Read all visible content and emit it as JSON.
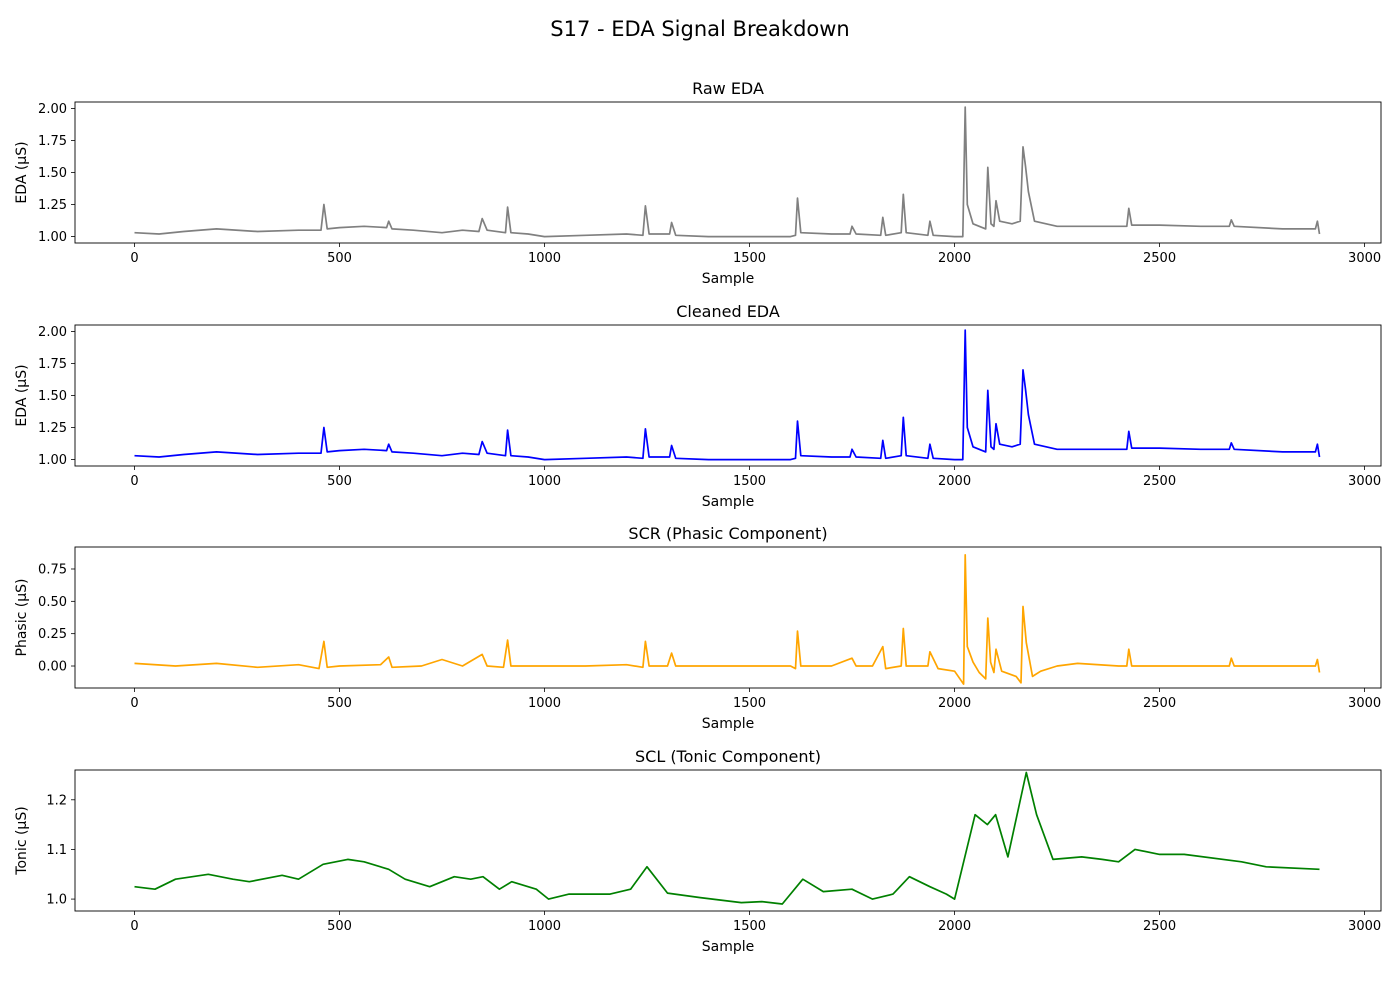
{
  "figure": {
    "title": "S17 - EDA Signal Breakdown"
  },
  "chart_data": [
    {
      "type": "line",
      "title": "Raw EDA",
      "xlabel": "Sample",
      "ylabel": "EDA (μS)",
      "color": "#808080",
      "xlim": [
        -145,
        3040
      ],
      "ylim": [
        0.95,
        2.05
      ],
      "xticks": [
        0,
        500,
        1000,
        1500,
        2000,
        2500,
        3000
      ],
      "yticks": [
        1.0,
        1.25,
        1.5,
        1.75,
        2.0
      ],
      "ytick_labels": [
        "1.00",
        "1.25",
        "1.50",
        "1.75",
        "2.00"
      ],
      "x": [
        0,
        60,
        120,
        200,
        300,
        400,
        455,
        462,
        470,
        500,
        560,
        615,
        620,
        628,
        680,
        750,
        800,
        840,
        848,
        860,
        905,
        910,
        918,
        960,
        1000,
        1100,
        1200,
        1240,
        1246,
        1255,
        1305,
        1310,
        1320,
        1400,
        1500,
        1600,
        1612,
        1617,
        1625,
        1700,
        1745,
        1750,
        1760,
        1820,
        1825,
        1832,
        1870,
        1875,
        1882,
        1935,
        1940,
        1948,
        2000,
        2020,
        2026,
        2031,
        2045,
        2060,
        2076,
        2081,
        2089,
        2096,
        2101,
        2110,
        2140,
        2160,
        2167,
        2173,
        2180,
        2195,
        2250,
        2300,
        2400,
        2420,
        2425,
        2432,
        2500,
        2600,
        2670,
        2675,
        2682,
        2800,
        2880,
        2885,
        2890
      ],
      "values": [
        1.03,
        1.02,
        1.04,
        1.06,
        1.04,
        1.05,
        1.05,
        1.25,
        1.06,
        1.07,
        1.08,
        1.07,
        1.12,
        1.06,
        1.05,
        1.03,
        1.05,
        1.04,
        1.14,
        1.05,
        1.03,
        1.23,
        1.03,
        1.02,
        1.0,
        1.01,
        1.02,
        1.01,
        1.24,
        1.02,
        1.02,
        1.11,
        1.01,
        1.0,
        1.0,
        1.0,
        1.01,
        1.3,
        1.03,
        1.02,
        1.02,
        1.08,
        1.02,
        1.01,
        1.15,
        1.01,
        1.03,
        1.33,
        1.03,
        1.01,
        1.12,
        1.01,
        1.0,
        1.0,
        2.01,
        1.25,
        1.1,
        1.08,
        1.06,
        1.54,
        1.1,
        1.08,
        1.28,
        1.12,
        1.1,
        1.12,
        1.7,
        1.55,
        1.35,
        1.12,
        1.08,
        1.08,
        1.08,
        1.08,
        1.22,
        1.09,
        1.09,
        1.08,
        1.08,
        1.13,
        1.08,
        1.06,
        1.06,
        1.12,
        1.02
      ]
    },
    {
      "type": "line",
      "title": "Cleaned EDA",
      "xlabel": "Sample",
      "ylabel": "EDA (μS)",
      "color": "#0000ff",
      "xlim": [
        -145,
        3040
      ],
      "ylim": [
        0.95,
        2.05
      ],
      "xticks": [
        0,
        500,
        1000,
        1500,
        2000,
        2500,
        3000
      ],
      "yticks": [
        1.0,
        1.25,
        1.5,
        1.75,
        2.0
      ],
      "ytick_labels": [
        "1.00",
        "1.25",
        "1.50",
        "1.75",
        "2.00"
      ],
      "x": [
        0,
        60,
        120,
        200,
        300,
        400,
        455,
        462,
        470,
        500,
        560,
        615,
        620,
        628,
        680,
        750,
        800,
        840,
        848,
        860,
        905,
        910,
        918,
        960,
        1000,
        1100,
        1200,
        1240,
        1246,
        1255,
        1305,
        1310,
        1320,
        1400,
        1500,
        1600,
        1612,
        1617,
        1625,
        1700,
        1745,
        1750,
        1760,
        1820,
        1825,
        1832,
        1870,
        1875,
        1882,
        1935,
        1940,
        1948,
        2000,
        2020,
        2026,
        2031,
        2045,
        2060,
        2076,
        2081,
        2089,
        2096,
        2101,
        2110,
        2140,
        2160,
        2167,
        2173,
        2180,
        2195,
        2250,
        2300,
        2400,
        2420,
        2425,
        2432,
        2500,
        2600,
        2670,
        2675,
        2682,
        2800,
        2880,
        2885,
        2890
      ],
      "values": [
        1.03,
        1.02,
        1.04,
        1.06,
        1.04,
        1.05,
        1.05,
        1.25,
        1.06,
        1.07,
        1.08,
        1.07,
        1.12,
        1.06,
        1.05,
        1.03,
        1.05,
        1.04,
        1.14,
        1.05,
        1.03,
        1.23,
        1.03,
        1.02,
        1.0,
        1.01,
        1.02,
        1.01,
        1.24,
        1.02,
        1.02,
        1.11,
        1.01,
        1.0,
        1.0,
        1.0,
        1.01,
        1.3,
        1.03,
        1.02,
        1.02,
        1.08,
        1.02,
        1.01,
        1.15,
        1.01,
        1.03,
        1.33,
        1.03,
        1.01,
        1.12,
        1.01,
        1.0,
        1.0,
        2.01,
        1.25,
        1.1,
        1.08,
        1.06,
        1.54,
        1.1,
        1.08,
        1.28,
        1.12,
        1.1,
        1.12,
        1.7,
        1.55,
        1.35,
        1.12,
        1.08,
        1.08,
        1.08,
        1.08,
        1.22,
        1.09,
        1.09,
        1.08,
        1.08,
        1.13,
        1.08,
        1.06,
        1.06,
        1.12,
        1.02
      ]
    },
    {
      "type": "line",
      "title": "SCR (Phasic Component)",
      "xlabel": "Sample",
      "ylabel": "Phasic (μS)",
      "color": "#ffa500",
      "xlim": [
        -145,
        3040
      ],
      "ylim": [
        -0.17,
        0.92
      ],
      "xticks": [
        0,
        500,
        1000,
        1500,
        2000,
        2500,
        3000
      ],
      "yticks": [
        0.0,
        0.25,
        0.5,
        0.75
      ],
      "ytick_labels": [
        "0.00",
        "0.25",
        "0.50",
        "0.75"
      ],
      "x": [
        0,
        100,
        200,
        300,
        400,
        450,
        462,
        470,
        500,
        600,
        620,
        628,
        700,
        750,
        800,
        848,
        860,
        900,
        910,
        918,
        1000,
        1100,
        1200,
        1240,
        1246,
        1255,
        1300,
        1310,
        1320,
        1400,
        1500,
        1600,
        1612,
        1617,
        1625,
        1700,
        1750,
        1760,
        1800,
        1825,
        1832,
        1870,
        1875,
        1882,
        1935,
        1940,
        1960,
        2000,
        2022,
        2026,
        2031,
        2045,
        2060,
        2076,
        2081,
        2088,
        2096,
        2101,
        2115,
        2150,
        2162,
        2167,
        2175,
        2190,
        2210,
        2250,
        2300,
        2400,
        2420,
        2425,
        2432,
        2500,
        2600,
        2670,
        2675,
        2682,
        2800,
        2880,
        2885,
        2890
      ],
      "values": [
        0.02,
        0.0,
        0.02,
        -0.01,
        0.01,
        -0.02,
        0.19,
        -0.01,
        0.0,
        0.01,
        0.07,
        -0.01,
        0.0,
        0.05,
        0.0,
        0.09,
        0.0,
        -0.01,
        0.2,
        0.0,
        0.0,
        0.0,
        0.01,
        -0.01,
        0.19,
        0.0,
        0.0,
        0.1,
        0.0,
        0.0,
        0.0,
        0.0,
        -0.02,
        0.27,
        0.0,
        0.0,
        0.06,
        0.0,
        0.0,
        0.15,
        -0.02,
        0.0,
        0.29,
        0.0,
        0.0,
        0.11,
        -0.02,
        -0.04,
        -0.14,
        0.86,
        0.15,
        0.03,
        -0.05,
        -0.1,
        0.37,
        0.03,
        -0.05,
        0.13,
        -0.04,
        -0.08,
        -0.13,
        0.46,
        0.18,
        -0.08,
        -0.04,
        0.0,
        0.02,
        0.0,
        0.0,
        0.13,
        0.0,
        0.0,
        0.0,
        0.0,
        0.06,
        0.0,
        0.0,
        0.0,
        0.05,
        -0.05
      ]
    },
    {
      "type": "line",
      "title": "SCL (Tonic Component)",
      "xlabel": "Sample",
      "ylabel": "Tonic (μS)",
      "color": "#008000",
      "xlim": [
        -145,
        3040
      ],
      "ylim": [
        0.976,
        1.26
      ],
      "xticks": [
        0,
        500,
        1000,
        1500,
        2000,
        2500,
        3000
      ],
      "yticks": [
        1.0,
        1.1,
        1.2
      ],
      "ytick_labels": [
        "1.0",
        "1.1",
        "1.2"
      ],
      "x": [
        0,
        50,
        100,
        180,
        240,
        280,
        360,
        400,
        460,
        520,
        560,
        620,
        660,
        720,
        780,
        820,
        850,
        890,
        920,
        980,
        1010,
        1060,
        1160,
        1210,
        1250,
        1300,
        1380,
        1480,
        1530,
        1580,
        1630,
        1680,
        1750,
        1800,
        1850,
        1890,
        1940,
        1980,
        2000,
        2050,
        2080,
        2100,
        2130,
        2175,
        2200,
        2240,
        2310,
        2360,
        2400,
        2440,
        2500,
        2560,
        2700,
        2760,
        2890
      ],
      "values": [
        1.025,
        1.02,
        1.04,
        1.05,
        1.04,
        1.035,
        1.048,
        1.04,
        1.07,
        1.08,
        1.075,
        1.06,
        1.04,
        1.025,
        1.045,
        1.04,
        1.045,
        1.02,
        1.035,
        1.02,
        1.0,
        1.01,
        1.01,
        1.02,
        1.065,
        1.012,
        1.003,
        0.993,
        0.995,
        0.99,
        1.04,
        1.015,
        1.02,
        1.0,
        1.01,
        1.045,
        1.025,
        1.01,
        1.0,
        1.17,
        1.15,
        1.17,
        1.085,
        1.255,
        1.17,
        1.08,
        1.085,
        1.08,
        1.075,
        1.1,
        1.09,
        1.09,
        1.075,
        1.065,
        1.06
      ]
    }
  ]
}
